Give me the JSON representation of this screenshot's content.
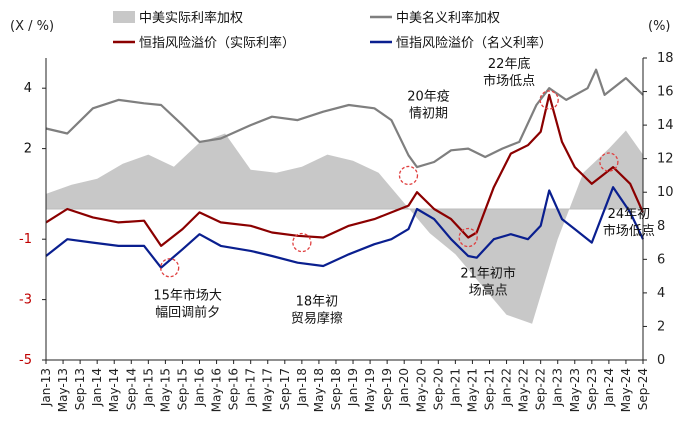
{
  "chart_data": {
    "type": "line",
    "left_axis": {
      "unit": "(X / %)",
      "ticks": [
        "4",
        "2",
        "-1",
        "-3",
        "-5"
      ],
      "tick_values": [
        4,
        2,
        -1,
        -3,
        -5
      ],
      "range": [
        -5,
        5
      ]
    },
    "right_axis": {
      "unit": "(%)",
      "ticks": [
        "18",
        "16",
        "14",
        "12",
        "10",
        "8",
        "6",
        "4",
        "2",
        "0"
      ],
      "tick_values": [
        18,
        16,
        14,
        12,
        10,
        8,
        6,
        4,
        2,
        0
      ],
      "range": [
        0,
        18
      ]
    },
    "x_ticks": [
      "Jan-13",
      "May-13",
      "Sep-13",
      "Jan-14",
      "May-14",
      "Sep-14",
      "Jan-15",
      "May-15",
      "Sep-15",
      "Jan-16",
      "May-16",
      "Sep-16",
      "Jan-17",
      "May-17",
      "Sep-17",
      "Jan-18",
      "May-18",
      "Sep-18",
      "Jan-19",
      "May-19",
      "Sep-19",
      "Jan-20",
      "May-20",
      "Sep-20",
      "Jan-21",
      "May-21",
      "Sep-21",
      "Jan-22",
      "May-22",
      "Sep-22",
      "Jan-23",
      "May-23",
      "Sep-23",
      "Jan-24",
      "May-24",
      "Sep-24"
    ],
    "x_start": "2013-01",
    "x_end": "2024-09",
    "legend": [
      {
        "key": "real_rate",
        "label": "中美实际利率加权",
        "color": "#c8c8c8",
        "kind": "area",
        "axis": "left"
      },
      {
        "key": "nominal_rate",
        "label": "中美名义利率加权",
        "color": "#7f7f7f",
        "kind": "line",
        "axis": "right"
      },
      {
        "key": "erp_real",
        "label": "恒指风险溢价（实际利率）",
        "color": "#8b0000",
        "kind": "line",
        "axis": "right"
      },
      {
        "key": "erp_nominal",
        "label": "恒指风险溢价（名义利率）",
        "color": "#0a1f8f",
        "kind": "line",
        "axis": "right"
      }
    ],
    "series": [
      {
        "name": "中美实际利率加权",
        "key": "real_rate",
        "axis": "left",
        "points": [
          [
            "2013-01",
            0.5
          ],
          [
            "2013-07",
            0.8
          ],
          [
            "2014-01",
            1.0
          ],
          [
            "2014-07",
            1.5
          ],
          [
            "2015-01",
            1.8
          ],
          [
            "2015-07",
            1.4
          ],
          [
            "2016-01",
            2.2
          ],
          [
            "2016-07",
            2.5
          ],
          [
            "2017-01",
            1.3
          ],
          [
            "2017-07",
            1.2
          ],
          [
            "2018-01",
            1.4
          ],
          [
            "2018-07",
            1.8
          ],
          [
            "2019-01",
            1.6
          ],
          [
            "2019-07",
            1.2
          ],
          [
            "2020-01",
            0.2
          ],
          [
            "2020-07",
            -0.8
          ],
          [
            "2021-01",
            -1.5
          ],
          [
            "2021-07",
            -2.5
          ],
          [
            "2022-01",
            -3.5
          ],
          [
            "2022-07",
            -3.8
          ],
          [
            "2023-01",
            -1.0
          ],
          [
            "2023-07",
            1.2
          ],
          [
            "2024-01",
            2.0
          ],
          [
            "2024-05",
            2.6
          ],
          [
            "2024-09",
            1.8
          ]
        ]
      },
      {
        "name": "中美名义利率加权",
        "key": "nominal_rate",
        "axis": "right",
        "points": [
          [
            "2013-01",
            13.8
          ],
          [
            "2013-06",
            13.5
          ],
          [
            "2013-12",
            15.0
          ],
          [
            "2014-06",
            15.5
          ],
          [
            "2014-12",
            15.3
          ],
          [
            "2015-04",
            15.2
          ],
          [
            "2015-09",
            14.0
          ],
          [
            "2016-01",
            13.0
          ],
          [
            "2016-06",
            13.2
          ],
          [
            "2017-01",
            14.0
          ],
          [
            "2017-06",
            14.5
          ],
          [
            "2017-12",
            14.3
          ],
          [
            "2018-06",
            14.8
          ],
          [
            "2018-12",
            15.2
          ],
          [
            "2019-06",
            15.0
          ],
          [
            "2019-10",
            14.3
          ],
          [
            "2020-02",
            12.2
          ],
          [
            "2020-04",
            11.5
          ],
          [
            "2020-08",
            11.8
          ],
          [
            "2020-12",
            12.5
          ],
          [
            "2021-04",
            12.6
          ],
          [
            "2021-08",
            12.1
          ],
          [
            "2021-12",
            12.6
          ],
          [
            "2022-04",
            13.0
          ],
          [
            "2022-08",
            15.2
          ],
          [
            "2022-11",
            16.2
          ],
          [
            "2023-03",
            15.5
          ],
          [
            "2023-08",
            16.2
          ],
          [
            "2023-10",
            17.3
          ],
          [
            "2023-12",
            15.8
          ],
          [
            "2024-05",
            16.8
          ],
          [
            "2024-09",
            15.8
          ]
        ]
      },
      {
        "name": "恒指风险溢价（实际利率）",
        "key": "erp_real",
        "axis": "right",
        "points": [
          [
            "2013-01",
            8.2
          ],
          [
            "2013-06",
            9.0
          ],
          [
            "2013-12",
            8.5
          ],
          [
            "2014-06",
            8.2
          ],
          [
            "2014-12",
            8.3
          ],
          [
            "2015-04",
            6.8
          ],
          [
            "2015-09",
            7.8
          ],
          [
            "2016-01",
            8.8
          ],
          [
            "2016-06",
            8.2
          ],
          [
            "2017-01",
            8.0
          ],
          [
            "2017-06",
            7.6
          ],
          [
            "2017-12",
            7.4
          ],
          [
            "2018-06",
            7.3
          ],
          [
            "2018-12",
            8.0
          ],
          [
            "2019-06",
            8.4
          ],
          [
            "2019-10",
            8.8
          ],
          [
            "2020-02",
            9.2
          ],
          [
            "2020-04",
            10.0
          ],
          [
            "2020-08",
            9.0
          ],
          [
            "2020-12",
            8.4
          ],
          [
            "2021-04",
            7.3
          ],
          [
            "2021-06",
            7.6
          ],
          [
            "2021-10",
            10.3
          ],
          [
            "2022-02",
            12.3
          ],
          [
            "2022-06",
            12.8
          ],
          [
            "2022-09",
            13.6
          ],
          [
            "2022-11",
            15.8
          ],
          [
            "2023-02",
            13.0
          ],
          [
            "2023-05",
            11.5
          ],
          [
            "2023-09",
            10.5
          ],
          [
            "2024-02",
            11.5
          ],
          [
            "2024-06",
            10.5
          ],
          [
            "2024-09",
            8.8
          ]
        ]
      },
      {
        "name": "恒指风险溢价（名义利率）",
        "key": "erp_nominal",
        "axis": "right",
        "points": [
          [
            "2013-01",
            6.2
          ],
          [
            "2013-06",
            7.2
          ],
          [
            "2013-12",
            7.0
          ],
          [
            "2014-06",
            6.8
          ],
          [
            "2014-12",
            6.8
          ],
          [
            "2015-04",
            5.5
          ],
          [
            "2015-09",
            6.6
          ],
          [
            "2016-01",
            7.5
          ],
          [
            "2016-06",
            6.8
          ],
          [
            "2017-01",
            6.5
          ],
          [
            "2017-06",
            6.2
          ],
          [
            "2017-12",
            5.8
          ],
          [
            "2018-06",
            5.6
          ],
          [
            "2018-12",
            6.3
          ],
          [
            "2019-06",
            6.9
          ],
          [
            "2019-10",
            7.2
          ],
          [
            "2020-02",
            7.8
          ],
          [
            "2020-04",
            9.0
          ],
          [
            "2020-08",
            8.4
          ],
          [
            "2020-12",
            7.2
          ],
          [
            "2021-04",
            6.2
          ],
          [
            "2021-06",
            6.1
          ],
          [
            "2021-10",
            7.2
          ],
          [
            "2022-02",
            7.5
          ],
          [
            "2022-06",
            7.2
          ],
          [
            "2022-09",
            8.0
          ],
          [
            "2022-11",
            10.1
          ],
          [
            "2023-02",
            8.4
          ],
          [
            "2023-05",
            7.8
          ],
          [
            "2023-09",
            7.0
          ],
          [
            "2024-02",
            10.3
          ],
          [
            "2024-06",
            8.8
          ],
          [
            "2024-09",
            7.2
          ]
        ]
      }
    ],
    "annotations": [
      {
        "lines": [
          "15年市场大",
          "幅回调前夕"
        ],
        "at": [
          "2015-06",
          5.5
        ],
        "circle": true
      },
      {
        "lines": [
          "18年初",
          "贸易摩擦"
        ],
        "at": [
          "2018-01",
          7.0
        ],
        "circle": true
      },
      {
        "lines": [
          "20年疫",
          "情初期"
        ],
        "at": [
          "2020-02",
          11.0
        ],
        "circle": true
      },
      {
        "lines": [
          "21年初市",
          "场高点"
        ],
        "at": [
          "2021-04",
          7.3
        ],
        "circle": true
      },
      {
        "lines": [
          "22年底",
          "市场低点"
        ],
        "at": [
          "2022-11",
          15.5
        ],
        "circle": true
      },
      {
        "lines": [
          "24年初",
          "市场低点"
        ],
        "at": [
          "2024-01",
          11.8
        ],
        "circle": true
      }
    ]
  }
}
